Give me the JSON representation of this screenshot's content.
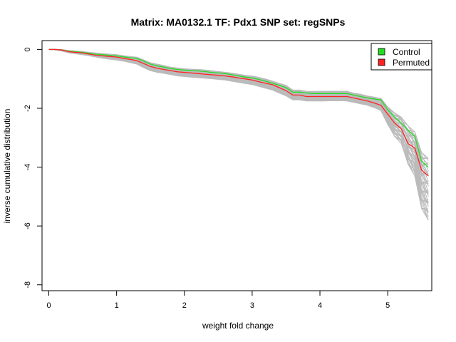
{
  "chart_data": {
    "type": "line",
    "title": "Matrix: MA0132.1 TF: Pdx1 SNP set: regSNPs",
    "xlabel": "weight fold change",
    "ylabel": "inverse cumulative distribution",
    "xlim": [
      -0.1,
      5.65
    ],
    "ylim": [
      -8.2,
      0.3
    ],
    "xticks": [
      0,
      1,
      2,
      3,
      4,
      5
    ],
    "yticks": [
      0,
      -2,
      -4,
      -6,
      -8
    ],
    "legend_position": "top-right",
    "x": [
      0,
      0.1,
      0.2,
      0.3,
      0.4,
      0.5,
      0.6,
      0.7,
      0.8,
      0.9,
      1.0,
      1.1,
      1.2,
      1.3,
      1.4,
      1.5,
      1.6,
      1.7,
      1.8,
      1.9,
      2.0,
      2.1,
      2.2,
      2.3,
      2.4,
      2.5,
      2.6,
      2.7,
      2.8,
      2.9,
      3.0,
      3.1,
      3.2,
      3.3,
      3.4,
      3.5,
      3.6,
      3.7,
      3.8,
      3.9,
      4.0,
      4.1,
      4.2,
      4.3,
      4.4,
      4.5,
      4.6,
      4.7,
      4.8,
      4.9,
      5.0,
      5.1,
      5.2,
      5.3,
      5.4,
      5.5,
      5.6
    ],
    "series": [
      {
        "name": "Control",
        "color": "#22dd22",
        "values": [
          0,
          0,
          -0.02,
          -0.06,
          -0.08,
          -0.1,
          -0.13,
          -0.16,
          -0.18,
          -0.2,
          -0.22,
          -0.25,
          -0.28,
          -0.3,
          -0.4,
          -0.5,
          -0.56,
          -0.6,
          -0.65,
          -0.68,
          -0.7,
          -0.72,
          -0.73,
          -0.75,
          -0.78,
          -0.8,
          -0.82,
          -0.86,
          -0.9,
          -0.94,
          -0.97,
          -1.02,
          -1.08,
          -1.15,
          -1.22,
          -1.3,
          -1.45,
          -1.45,
          -1.48,
          -1.5,
          -1.5,
          -1.5,
          -1.5,
          -1.5,
          -1.5,
          -1.55,
          -1.6,
          -1.65,
          -1.68,
          -1.72,
          -2.05,
          -2.3,
          -2.5,
          -2.75,
          -2.95,
          -3.8,
          -4.0
        ]
      },
      {
        "name": "Permuted",
        "color": "#ff2222",
        "values": [
          0,
          0,
          -0.02,
          -0.08,
          -0.1,
          -0.12,
          -0.16,
          -0.2,
          -0.22,
          -0.24,
          -0.26,
          -0.3,
          -0.34,
          -0.38,
          -0.48,
          -0.58,
          -0.64,
          -0.68,
          -0.72,
          -0.76,
          -0.78,
          -0.8,
          -0.82,
          -0.84,
          -0.86,
          -0.88,
          -0.9,
          -0.93,
          -0.97,
          -1.0,
          -1.04,
          -1.1,
          -1.15,
          -1.2,
          -1.3,
          -1.4,
          -1.55,
          -1.55,
          -1.6,
          -1.6,
          -1.6,
          -1.6,
          -1.6,
          -1.6,
          -1.6,
          -1.65,
          -1.7,
          -1.75,
          -1.82,
          -1.9,
          -2.2,
          -2.5,
          -2.7,
          -3.2,
          -3.35,
          -4.1,
          -4.3
        ]
      }
    ],
    "background_band": {
      "name": "Permuted replicates (gray)",
      "color": "#bbbbbb",
      "count": 45,
      "upper": [
        0,
        0,
        -0.01,
        -0.04,
        -0.05,
        -0.07,
        -0.1,
        -0.12,
        -0.14,
        -0.16,
        -0.18,
        -0.21,
        -0.24,
        -0.26,
        -0.35,
        -0.45,
        -0.5,
        -0.55,
        -0.6,
        -0.63,
        -0.65,
        -0.67,
        -0.68,
        -0.7,
        -0.72,
        -0.75,
        -0.77,
        -0.8,
        -0.84,
        -0.88,
        -0.9,
        -0.95,
        -1.0,
        -1.07,
        -1.15,
        -1.22,
        -1.38,
        -1.38,
        -1.42,
        -1.42,
        -1.42,
        -1.42,
        -1.42,
        -1.42,
        -1.42,
        -1.48,
        -1.52,
        -1.58,
        -1.62,
        -1.66,
        -1.95,
        -2.15,
        -2.3,
        -2.6,
        -2.8,
        -3.5,
        -3.7
      ],
      "lower": [
        0,
        -0.02,
        -0.06,
        -0.12,
        -0.15,
        -0.18,
        -0.22,
        -0.26,
        -0.3,
        -0.33,
        -0.36,
        -0.4,
        -0.45,
        -0.5,
        -0.62,
        -0.72,
        -0.78,
        -0.82,
        -0.86,
        -0.9,
        -0.92,
        -0.94,
        -0.96,
        -0.98,
        -1.0,
        -1.02,
        -1.04,
        -1.08,
        -1.12,
        -1.16,
        -1.2,
        -1.26,
        -1.32,
        -1.38,
        -1.48,
        -1.58,
        -1.72,
        -1.72,
        -1.75,
        -1.75,
        -1.75,
        -1.75,
        -1.75,
        -1.75,
        -1.75,
        -1.8,
        -1.85,
        -1.9,
        -1.98,
        -2.08,
        -2.55,
        -2.95,
        -3.2,
        -3.9,
        -4.3,
        -5.4,
        -5.8
      ]
    }
  }
}
